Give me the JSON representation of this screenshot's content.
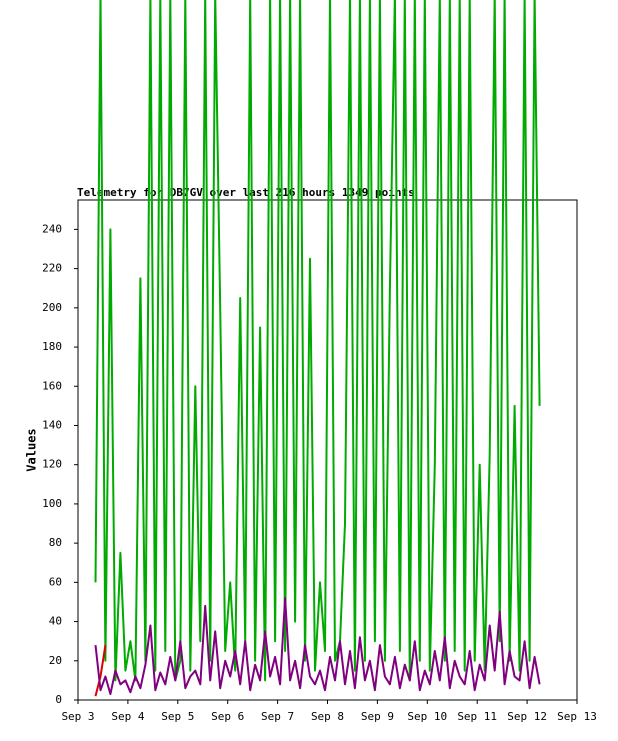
{
  "chart_data": {
    "type": "line",
    "title": "Telemetry for DB7GV over last 216 hours 1349 points",
    "y_label": "Values",
    "x": [
      3.35,
      3.45,
      3.55,
      3.65,
      3.75,
      3.85,
      3.95,
      4.05,
      4.15,
      4.25,
      4.35,
      4.45,
      4.55,
      4.65,
      4.75,
      4.85,
      4.95,
      5.05,
      5.15,
      5.25,
      5.35,
      5.45,
      5.55,
      5.65,
      5.75,
      5.85,
      5.95,
      6.05,
      6.15,
      6.25,
      6.35,
      6.45,
      6.55,
      6.65,
      6.75,
      6.85,
      6.95,
      7.05,
      7.15,
      7.25,
      7.35,
      7.45,
      7.55,
      7.65,
      7.75,
      7.85,
      7.95,
      8.05,
      8.15,
      8.25,
      8.35,
      8.45,
      8.55,
      8.65,
      8.75,
      8.85,
      8.95,
      9.05,
      9.15,
      9.25,
      9.35,
      9.45,
      9.55,
      9.65,
      9.75,
      9.85,
      9.95,
      10.05,
      10.15,
      10.25,
      10.35,
      10.45,
      10.55,
      10.65,
      10.75,
      10.85,
      10.95,
      11.05,
      11.15,
      11.25,
      11.35,
      11.45,
      11.55,
      11.65,
      11.75,
      11.85,
      11.95,
      12.05,
      12.15,
      12.25
    ],
    "series": [
      {
        "color": "#00aa00",
        "values": [
          60,
          360,
          20,
          240,
          10,
          75,
          15,
          30,
          10,
          215,
          20,
          360,
          15,
          360,
          25,
          360,
          10,
          20,
          360,
          15,
          160,
          30,
          360,
          20,
          360,
          200,
          25,
          60,
          15,
          205,
          30,
          360,
          20,
          190,
          10,
          360,
          30,
          360,
          25,
          360,
          40,
          360,
          20,
          225,
          15,
          60,
          25,
          360,
          20,
          30,
          90,
          360,
          15,
          360,
          20,
          360,
          30,
          360,
          20,
          210,
          360,
          25,
          360,
          10,
          360,
          20,
          360,
          15,
          120,
          360,
          20,
          360,
          25,
          360,
          15,
          360,
          20,
          120,
          15,
          125,
          360,
          30,
          360,
          20,
          150,
          15,
          360,
          20,
          360,
          150
        ]
      },
      {
        "color": "#dd0000",
        "values": [
          2,
          12,
          28,
          null,
          null,
          null,
          null,
          null,
          null,
          null,
          null,
          null,
          null,
          null,
          null,
          null,
          null,
          null,
          null,
          null,
          null,
          null,
          null,
          null,
          null,
          null,
          null,
          null,
          null,
          null,
          null,
          null,
          null,
          null,
          null,
          null,
          null,
          null,
          null,
          null,
          null,
          null,
          null,
          null,
          null,
          null,
          null,
          null,
          null,
          null,
          null,
          null,
          null,
          null,
          null,
          null,
          null,
          null,
          null,
          null,
          null,
          null,
          null,
          null,
          null,
          null,
          null,
          null,
          null,
          null,
          null,
          null,
          null,
          null,
          null,
          null,
          null,
          null,
          null,
          null,
          null,
          null,
          null,
          null,
          null,
          null,
          null,
          null,
          null,
          null
        ]
      },
      {
        "color": "#800080",
        "values": [
          28,
          5,
          12,
          3,
          15,
          8,
          10,
          4,
          12,
          6,
          18,
          38,
          5,
          14,
          8,
          22,
          10,
          30,
          6,
          12,
          15,
          8,
          48,
          10,
          35,
          6,
          20,
          12,
          25,
          8,
          30,
          5,
          18,
          10,
          35,
          12,
          22,
          8,
          52,
          10,
          20,
          6,
          28,
          12,
          8,
          15,
          5,
          22,
          10,
          30,
          8,
          25,
          6,
          32,
          10,
          20,
          5,
          28,
          12,
          8,
          22,
          6,
          18,
          10,
          30,
          5,
          15,
          8,
          25,
          10,
          32,
          6,
          20,
          12,
          8,
          25,
          5,
          18,
          10,
          38,
          15,
          45,
          8,
          25,
          12,
          10,
          30,
          6,
          22,
          8
        ]
      }
    ],
    "xlim": [
      3,
      13
    ],
    "xticks": [
      {
        "value": 3,
        "label": "Sep 3"
      },
      {
        "value": 4,
        "label": "Sep 4"
      },
      {
        "value": 5,
        "label": "Sep 5"
      },
      {
        "value": 6,
        "label": "Sep 6"
      },
      {
        "value": 7,
        "label": "Sep 7"
      },
      {
        "value": 8,
        "label": "Sep 8"
      },
      {
        "value": 9,
        "label": "Sep 9"
      },
      {
        "value": 10,
        "label": "Sep 10"
      },
      {
        "value": 11,
        "label": "Sep 11"
      },
      {
        "value": 12,
        "label": "Sep 12"
      },
      {
        "value": 13,
        "label": "Sep 13"
      }
    ],
    "ylim": [
      0,
      255
    ],
    "yticks": [
      0,
      20,
      40,
      60,
      80,
      100,
      120,
      140,
      160,
      180,
      200,
      220,
      240
    ]
  }
}
